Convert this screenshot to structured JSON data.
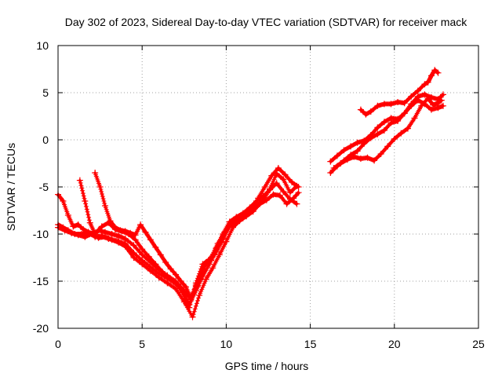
{
  "chart_data": {
    "type": "scatter",
    "title": "Day 302 of 2023, Sidereal Day-to-day VTEC variation (SDTVAR) for receiver mack",
    "xlabel": "GPS time / hours",
    "ylabel": "SDTVAR / TECUs",
    "xlim": [
      0,
      25
    ],
    "ylim": [
      -20,
      10
    ],
    "xticks": [
      0,
      5,
      10,
      15,
      20,
      25
    ],
    "yticks": [
      -20,
      -15,
      -10,
      -5,
      0,
      5,
      10
    ],
    "grid": true,
    "marker": "+",
    "color": "#ff0000",
    "series": [
      {
        "name": "track 1",
        "x": [
          0.0,
          0.3,
          0.6,
          1.0,
          1.4,
          1.8,
          2.2,
          2.6,
          3.0,
          3.5,
          4.0,
          4.5,
          5.0,
          5.5,
          6.0,
          6.5,
          7.0,
          7.4,
          7.8,
          8.2,
          8.6,
          9.0,
          9.4,
          9.8,
          10.2,
          10.6,
          11.0,
          11.4,
          11.8,
          12.2,
          12.6,
          13.0,
          13.4,
          13.8,
          14.2
        ],
        "y": [
          -9.0,
          -9.3,
          -9.6,
          -10.0,
          -10.0,
          -9.8,
          -10.3,
          -10.2,
          -10.5,
          -10.7,
          -11.0,
          -12.0,
          -12.8,
          -13.5,
          -14.2,
          -14.7,
          -15.3,
          -16.0,
          -17.5,
          -16.0,
          -14.5,
          -13.2,
          -11.5,
          -10.0,
          -8.7,
          -8.2,
          -7.8,
          -7.2,
          -6.5,
          -6.0,
          -5.3,
          -4.6,
          -5.5,
          -6.3,
          -6.8
        ]
      },
      {
        "name": "track 2",
        "x": [
          0.0,
          0.4,
          0.8,
          1.2,
          1.6,
          2.0,
          2.4,
          2.8,
          3.2,
          3.6,
          4.0,
          4.5,
          5.0,
          5.5,
          6.0,
          6.5,
          7.0,
          7.5,
          8.0,
          8.4,
          8.8,
          9.2,
          9.6,
          10.0,
          10.4,
          10.8,
          11.2,
          11.6,
          12.0,
          12.4,
          12.8,
          13.2,
          13.6,
          14.0,
          14.3
        ],
        "y": [
          -9.3,
          -9.6,
          -9.9,
          -10.1,
          -10.3,
          -10.0,
          -10.4,
          -10.3,
          -10.6,
          -10.9,
          -11.3,
          -12.5,
          -13.2,
          -13.9,
          -14.6,
          -15.2,
          -15.8,
          -17.2,
          -18.8,
          -16.5,
          -14.8,
          -13.6,
          -12.2,
          -10.8,
          -9.3,
          -8.6,
          -8.1,
          -7.6,
          -6.8,
          -6.4,
          -5.8,
          -5.9,
          -6.8,
          -6.2,
          -5.6
        ]
      },
      {
        "name": "track 3",
        "x": [
          0.0,
          0.3,
          0.6,
          0.9,
          1.2,
          1.5,
          1.8,
          2.1,
          2.4,
          2.8,
          3.2,
          3.6,
          4.0,
          4.5,
          5.0,
          5.5,
          6.0,
          6.5,
          7.0,
          7.5,
          7.9,
          8.3,
          8.7,
          9.1,
          9.5,
          9.9,
          10.3,
          10.7,
          11.1,
          11.5,
          11.9,
          12.3,
          12.7,
          13.1,
          13.5,
          13.9,
          14.3
        ],
        "y": [
          -5.8,
          -6.5,
          -8.0,
          -9.2,
          -9.0,
          -9.5,
          -9.8,
          -10.0,
          -9.6,
          -9.8,
          -10.0,
          -10.2,
          -10.5,
          -11.2,
          -12.2,
          -13.0,
          -13.8,
          -14.4,
          -15.0,
          -16.0,
          -17.0,
          -15.5,
          -13.5,
          -12.5,
          -11.0,
          -9.8,
          -8.8,
          -8.4,
          -7.9,
          -7.4,
          -6.2,
          -5.0,
          -3.8,
          -3.0,
          -3.7,
          -4.5,
          -5.0
        ]
      },
      {
        "name": "track 4",
        "x": [
          1.3,
          1.6,
          1.9,
          2.2,
          2.6,
          3.0,
          3.4,
          3.8,
          4.2,
          4.6,
          5.0,
          5.4,
          5.8,
          6.2,
          6.6,
          7.0,
          7.4,
          7.8,
          8.2,
          8.6,
          9.0,
          9.4,
          9.8,
          10.2,
          10.6,
          11.0,
          11.4,
          11.8,
          12.2,
          12.6,
          13.0,
          13.4,
          13.8,
          14.2
        ],
        "y": [
          -4.3,
          -6.5,
          -8.8,
          -10.0,
          -9.2,
          -8.8,
          -9.5,
          -9.7,
          -10.0,
          -10.6,
          -11.6,
          -12.4,
          -13.2,
          -14.0,
          -14.7,
          -15.2,
          -16.2,
          -17.8,
          -15.2,
          -13.2,
          -12.7,
          -11.7,
          -10.5,
          -9.2,
          -8.8,
          -8.3,
          -7.7,
          -7.0,
          -6.4,
          -5.2,
          -3.6,
          -4.2,
          -5.6,
          -4.9
        ]
      },
      {
        "name": "track 5",
        "x": [
          2.2,
          2.5,
          2.8,
          3.1,
          3.4,
          3.7,
          4.0,
          4.3,
          4.6,
          4.9,
          5.2,
          5.5,
          5.8,
          6.1,
          6.4,
          6.7,
          7.0,
          7.3,
          7.6,
          7.9,
          8.2,
          8.5,
          8.8,
          9.1,
          9.4,
          9.7,
          10.0
        ],
        "y": [
          -3.5,
          -5.0,
          -7.0,
          -8.6,
          -9.3,
          -9.6,
          -9.7,
          -9.9,
          -10.1,
          -9.0,
          -9.8,
          -10.6,
          -11.4,
          -12.2,
          -13.0,
          -13.7,
          -14.3,
          -15.0,
          -15.6,
          -16.8,
          -15.4,
          -14.3,
          -13.0,
          -12.8,
          -11.9,
          -10.9,
          -9.7
        ]
      },
      {
        "name": "track 6",
        "x": [
          16.2,
          16.6,
          17.0,
          17.4,
          17.8,
          18.2,
          18.6,
          19.0,
          19.4,
          19.8,
          20.2,
          20.6,
          21.0,
          21.4,
          21.8,
          22.2,
          22.6,
          22.9
        ],
        "y": [
          -3.5,
          -2.8,
          -2.2,
          -1.6,
          -1.2,
          -0.4,
          0.2,
          0.6,
          1.0,
          1.8,
          2.0,
          2.8,
          3.6,
          4.2,
          3.8,
          3.2,
          3.4,
          3.6
        ]
      },
      {
        "name": "track 7",
        "x": [
          16.2,
          16.6,
          17.0,
          17.4,
          17.8,
          18.2,
          18.6,
          19.0,
          19.4,
          19.8,
          20.2,
          20.6,
          21.0,
          21.4,
          21.8,
          22.2,
          22.6,
          22.9
        ],
        "y": [
          -2.3,
          -1.7,
          -1.1,
          -0.7,
          -0.3,
          -0.1,
          0.5,
          1.3,
          1.9,
          2.3,
          2.2,
          2.8,
          3.8,
          4.6,
          4.8,
          4.5,
          4.3,
          4.8
        ]
      },
      {
        "name": "track 8",
        "x": [
          16.4,
          16.8,
          17.2,
          17.6,
          18.0,
          18.4,
          18.8,
          19.2,
          19.6,
          20.0,
          20.4,
          20.8,
          21.2,
          21.6,
          22.0,
          22.3,
          22.6,
          22.8
        ],
        "y": [
          -3.0,
          -2.5,
          -2.1,
          -1.8,
          -2.0,
          -1.9,
          -2.2,
          -1.5,
          -0.7,
          0.1,
          0.7,
          1.2,
          2.3,
          3.6,
          4.4,
          3.7,
          3.9,
          4.2
        ]
      },
      {
        "name": "track 9",
        "x": [
          18.0,
          18.3,
          18.6,
          19.0,
          19.4,
          19.8,
          20.2,
          20.6,
          21.0,
          21.4,
          21.8,
          22.0,
          22.2,
          22.4,
          22.6
        ],
        "y": [
          3.2,
          2.7,
          3.0,
          3.6,
          3.8,
          3.8,
          4.0,
          3.9,
          4.6,
          5.2,
          5.9,
          6.1,
          6.8,
          7.4,
          7.1
        ]
      }
    ]
  }
}
